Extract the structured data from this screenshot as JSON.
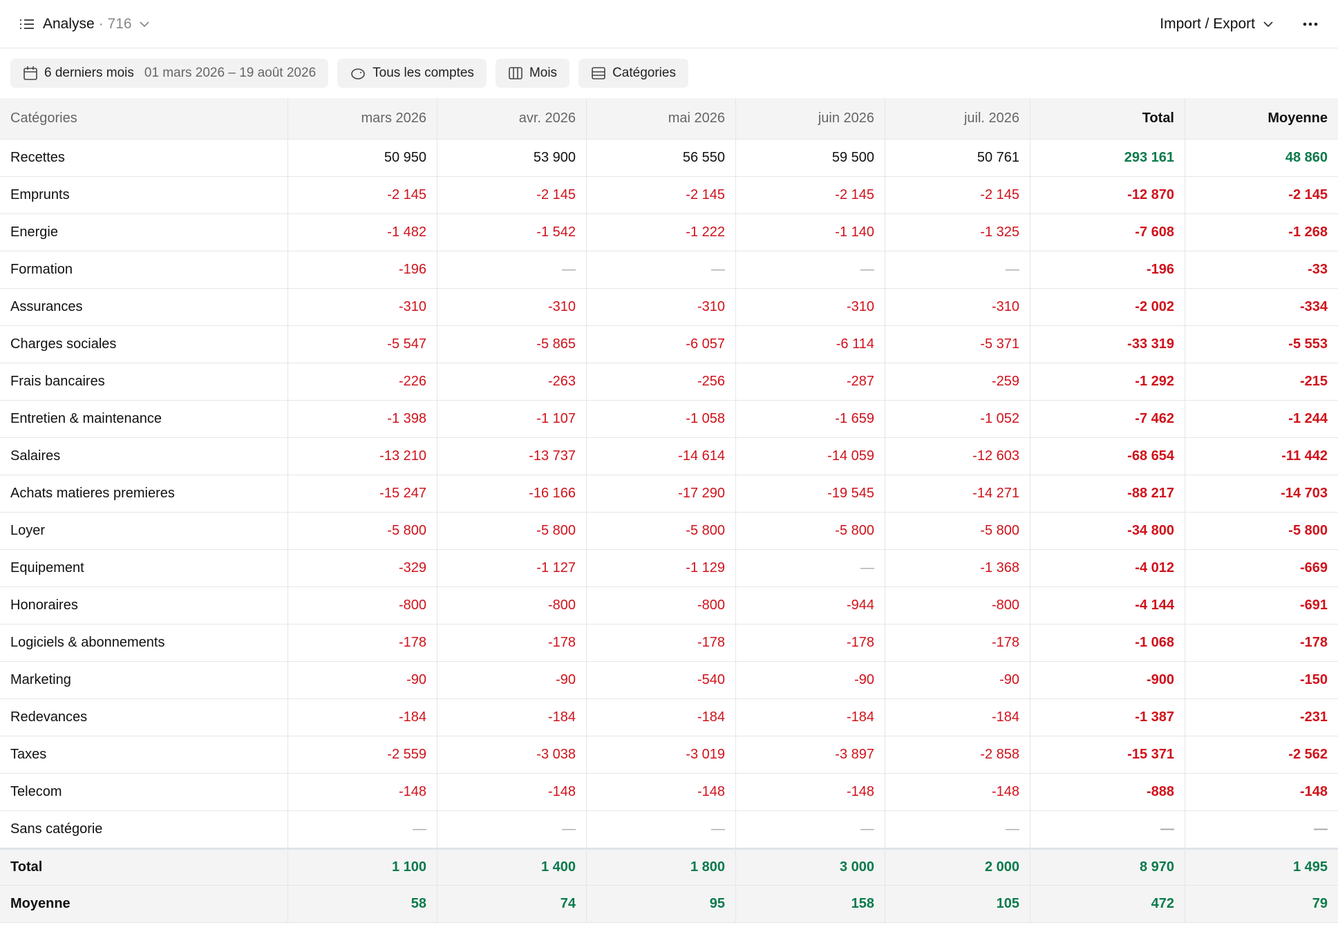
{
  "header": {
    "title": "Analyse",
    "count": "· 716",
    "import_export": "Import / Export"
  },
  "toolbar": {
    "period": "6 derniers mois",
    "range": "01 mars 2026 – 19 août 2026",
    "accounts": "Tous les comptes",
    "granularity": "Mois",
    "grouping": "Catégories"
  },
  "table": {
    "columns": [
      "Catégories",
      "mars 2026",
      "avr. 2026",
      "mai 2026",
      "juin 2026",
      "juil. 2026",
      "Total",
      "Moyenne"
    ],
    "rows": [
      {
        "label": "Recettes",
        "values": [
          "50 950",
          "53 900",
          "56 550",
          "59 500",
          "50 761",
          "293 161",
          "48 860"
        ]
      },
      {
        "label": "Emprunts",
        "values": [
          "-2 145",
          "-2 145",
          "-2 145",
          "-2 145",
          "-2 145",
          "-12 870",
          "-2 145"
        ]
      },
      {
        "label": "Energie",
        "values": [
          "-1 482",
          "-1 542",
          "-1 222",
          "-1 140",
          "-1 325",
          "-7 608",
          "-1 268"
        ]
      },
      {
        "label": "Formation",
        "values": [
          "-196",
          "—",
          "—",
          "—",
          "—",
          "-196",
          "-33"
        ]
      },
      {
        "label": "Assurances",
        "values": [
          "-310",
          "-310",
          "-310",
          "-310",
          "-310",
          "-2 002",
          "-334"
        ]
      },
      {
        "label": "Charges sociales",
        "values": [
          "-5 547",
          "-5 865",
          "-6 057",
          "-6 114",
          "-5 371",
          "-33 319",
          "-5 553"
        ]
      },
      {
        "label": "Frais bancaires",
        "values": [
          "-226",
          "-263",
          "-256",
          "-287",
          "-259",
          "-1 292",
          "-215"
        ]
      },
      {
        "label": "Entretien & maintenance",
        "values": [
          "-1 398",
          "-1 107",
          "-1 058",
          "-1 659",
          "-1 052",
          "-7 462",
          "-1 244"
        ]
      },
      {
        "label": "Salaires",
        "values": [
          "-13 210",
          "-13 737",
          "-14 614",
          "-14 059",
          "-12 603",
          "-68 654",
          "-11 442"
        ]
      },
      {
        "label": "Achats matieres premieres",
        "values": [
          "-15 247",
          "-16 166",
          "-17 290",
          "-19 545",
          "-14 271",
          "-88 217",
          "-14 703"
        ]
      },
      {
        "label": "Loyer",
        "values": [
          "-5 800",
          "-5 800",
          "-5 800",
          "-5 800",
          "-5 800",
          "-34 800",
          "-5 800"
        ]
      },
      {
        "label": "Equipement",
        "values": [
          "-329",
          "-1 127",
          "-1 129",
          "—",
          "-1 368",
          "-4 012",
          "-669"
        ]
      },
      {
        "label": "Honoraires",
        "values": [
          "-800",
          "-800",
          "-800",
          "-944",
          "-800",
          "-4 144",
          "-691"
        ]
      },
      {
        "label": "Logiciels & abonnements",
        "values": [
          "-178",
          "-178",
          "-178",
          "-178",
          "-178",
          "-1 068",
          "-178"
        ]
      },
      {
        "label": "Marketing",
        "values": [
          "-90",
          "-90",
          "-540",
          "-90",
          "-90",
          "-900",
          "-150"
        ]
      },
      {
        "label": "Redevances",
        "values": [
          "-184",
          "-184",
          "-184",
          "-184",
          "-184",
          "-1 387",
          "-231"
        ]
      },
      {
        "label": "Taxes",
        "values": [
          "-2 559",
          "-3 038",
          "-3 019",
          "-3 897",
          "-2 858",
          "-15 371",
          "-2 562"
        ]
      },
      {
        "label": "Telecom",
        "values": [
          "-148",
          "-148",
          "-148",
          "-148",
          "-148",
          "-888",
          "-148"
        ]
      },
      {
        "label": "Sans catégorie",
        "values": [
          "—",
          "—",
          "—",
          "—",
          "—",
          "—",
          "—"
        ]
      }
    ],
    "footer": [
      {
        "label": "Total",
        "values": [
          "1 100",
          "1 400",
          "1 800",
          "3 000",
          "2 000",
          "8 970",
          "1 495"
        ]
      },
      {
        "label": "Moyenne",
        "values": [
          "58",
          "74",
          "95",
          "158",
          "105",
          "472",
          "79"
        ]
      }
    ]
  }
}
